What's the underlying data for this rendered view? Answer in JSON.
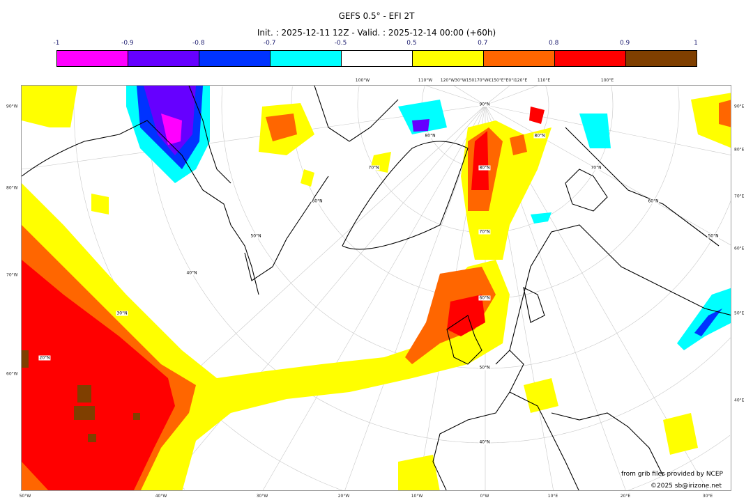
{
  "title": "GEFS 0.5° - EFI 2T",
  "subtitle": "Init. : 2025-12-11 12Z - Valid. : 2025-12-14 00:00 (+60h)",
  "colorbar": {
    "ticks": [
      "-1",
      "-0.9",
      "-0.8",
      "-0.7",
      "-0.5",
      "0.5",
      "0.7",
      "0.8",
      "0.9",
      "1"
    ],
    "colors": [
      "#ff00ff",
      "#6600ff",
      "#0033ff",
      "#00ffff",
      "#ffffff",
      "#ffff00",
      "#ff6600",
      "#ff0000",
      "#7f3f00"
    ]
  },
  "axes": {
    "bottom": [
      "50°W",
      "40°W",
      "30°W",
      "20°W",
      "10°W",
      "0°W",
      "10°E",
      "20°E",
      "30°E"
    ],
    "top": [
      "100°W",
      "110°W",
      "120°W30°W150170°W€150°E°E0°I120°E",
      "110°E",
      "100°E"
    ],
    "left": [
      "90°W",
      "80°W",
      "70°W",
      "60°W"
    ],
    "right": [
      "90°E",
      "80°E",
      "70°E",
      "60°E",
      "50°E",
      "40°E"
    ],
    "latitude_labels": [
      "90°N",
      "80°N",
      "80°N",
      "70°N",
      "80°N",
      "70°N",
      "60°N",
      "60°N",
      "50°N",
      "70°N",
      "50°N",
      "40°N",
      "60°N",
      "30°N",
      "50°N",
      "20°N",
      "40°N"
    ]
  },
  "credits": {
    "source": "from grib files provided by NCEP",
    "copyright": "©2025 sb@irizone.net"
  }
}
